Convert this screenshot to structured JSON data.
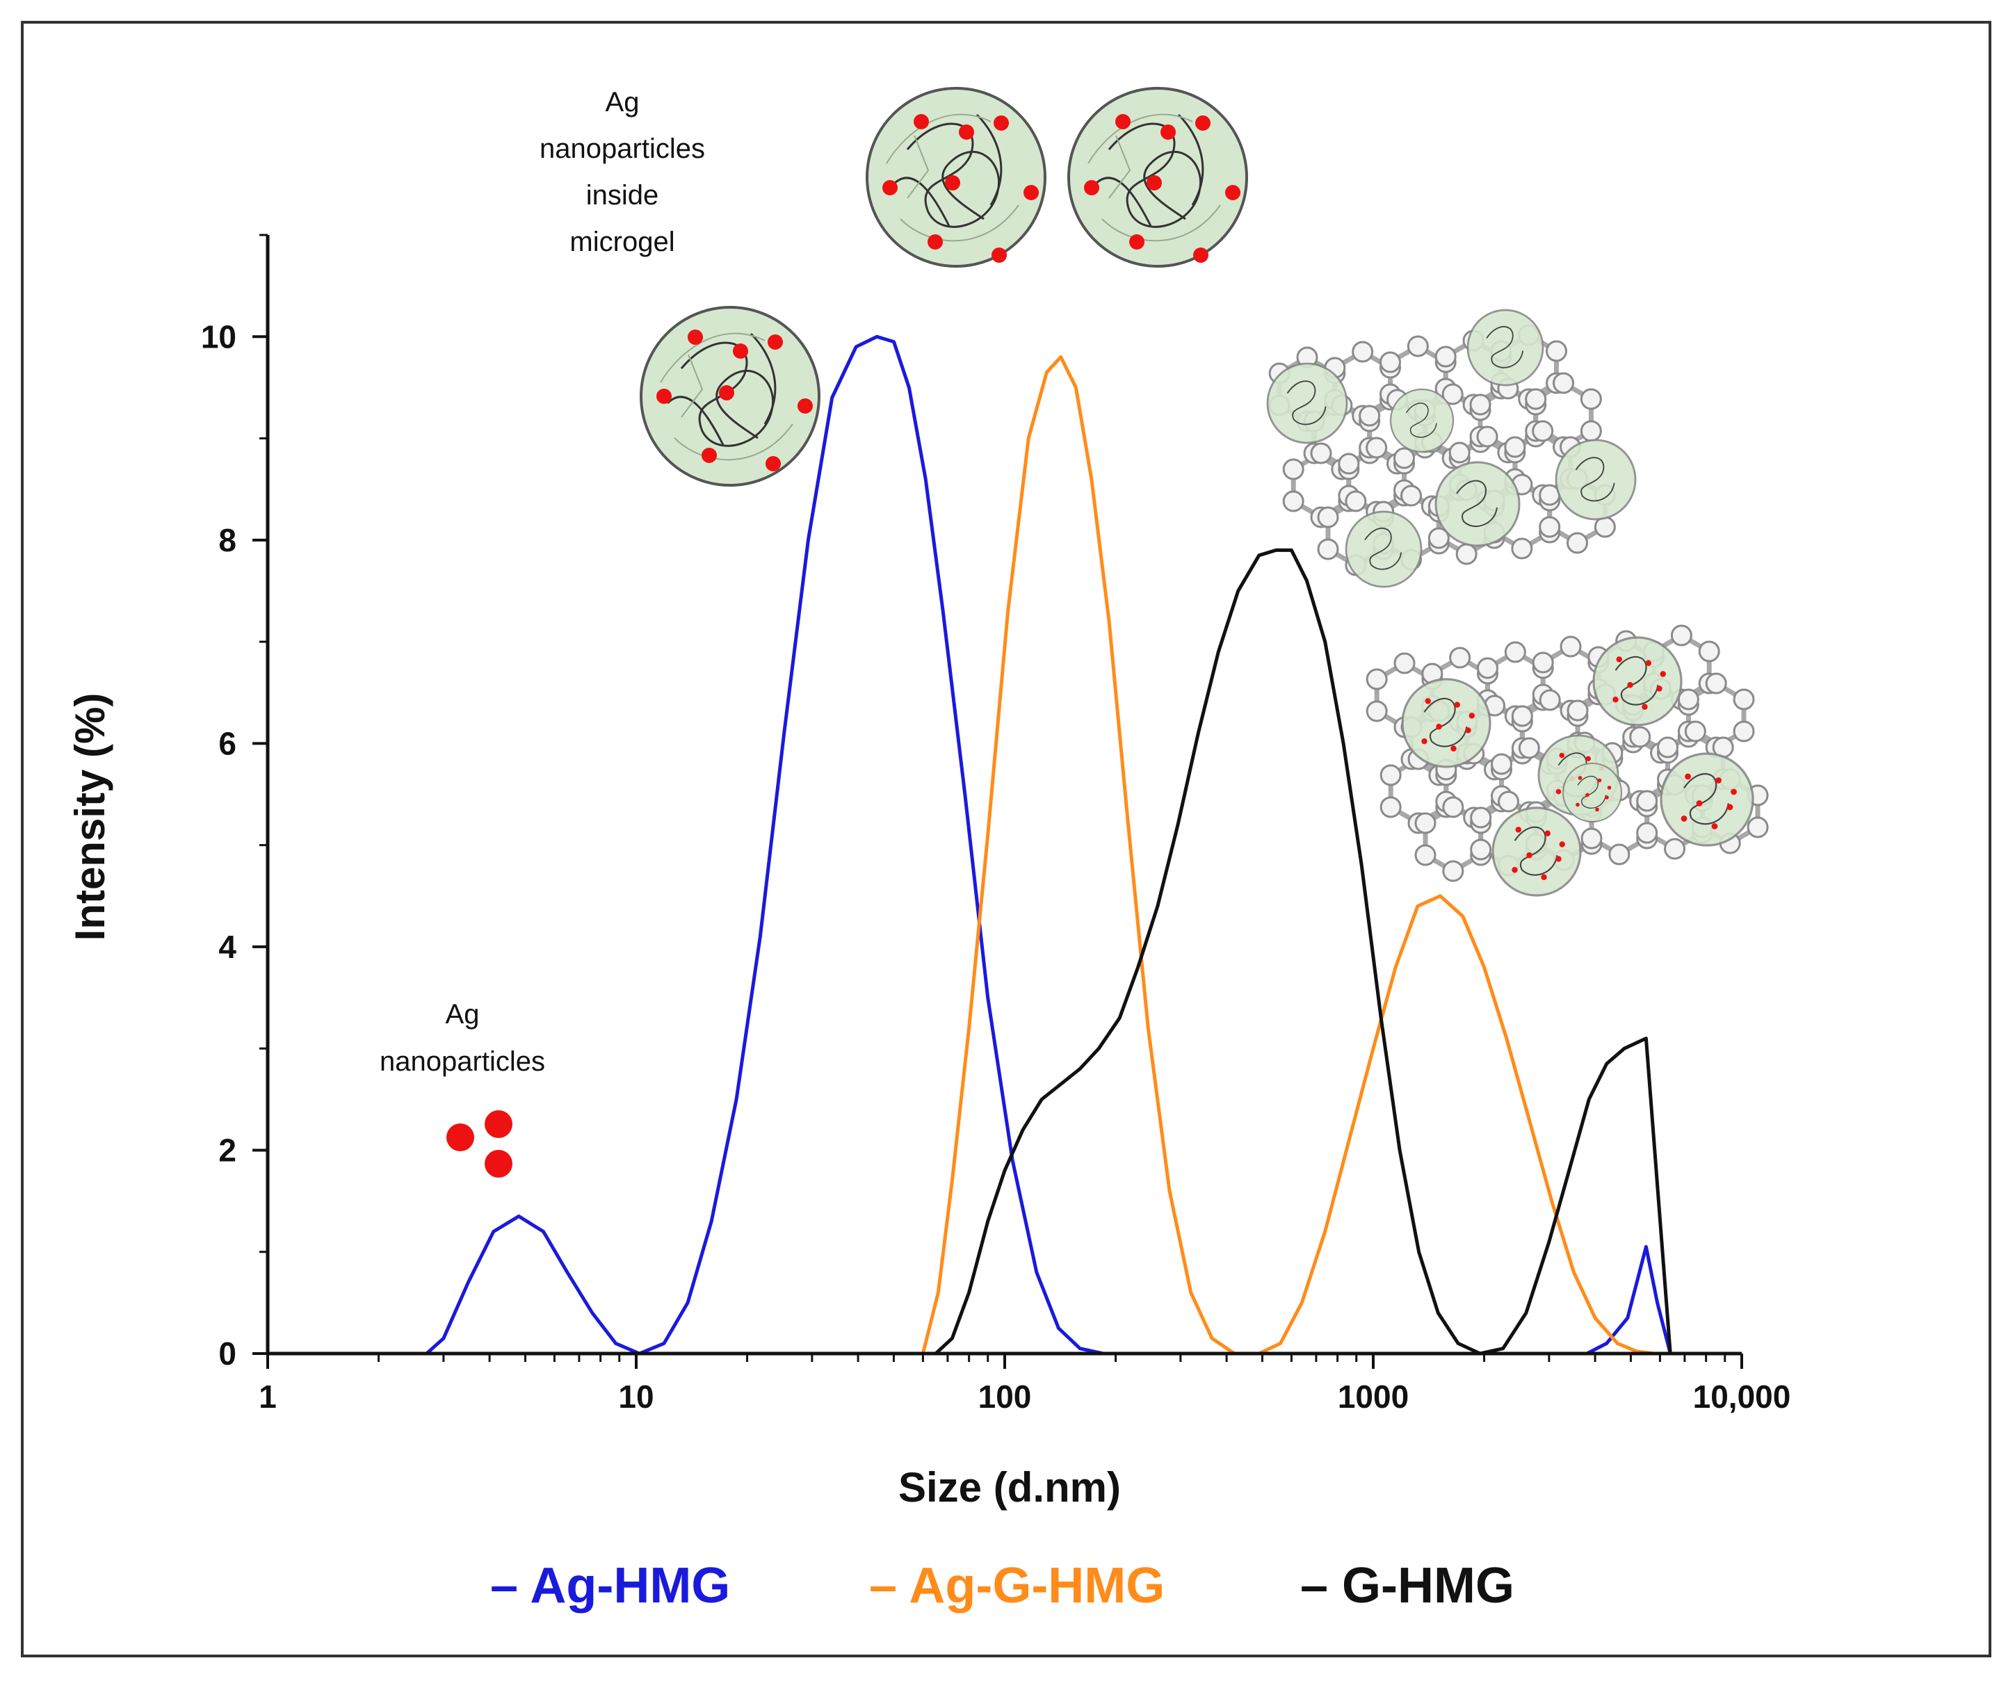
{
  "chart_data": {
    "type": "line",
    "title": "",
    "xlabel": "Size (d.nm)",
    "ylabel": "Intensity (%)",
    "x_scale": "log",
    "xlim": [
      1,
      10000
    ],
    "ylim": [
      0,
      11
    ],
    "x_ticks": [
      {
        "value": 1,
        "label": "1"
      },
      {
        "value": 10,
        "label": "10"
      },
      {
        "value": 100,
        "label": "100"
      },
      {
        "value": 1000,
        "label": "1000"
      },
      {
        "value": 10000,
        "label": "10,000"
      }
    ],
    "y_ticks": [
      {
        "value": 0,
        "label": "0"
      },
      {
        "value": 2,
        "label": "2"
      },
      {
        "value": 4,
        "label": "4"
      },
      {
        "value": 6,
        "label": "6"
      },
      {
        "value": 8,
        "label": "8"
      },
      {
        "value": 10,
        "label": "10"
      }
    ],
    "series": [
      {
        "name": "Ag-HMG",
        "legend_label": "– Ag-HMG",
        "color": "#1a1adc",
        "x": [
          2.7,
          3.0,
          3.5,
          4.1,
          4.8,
          5.6,
          6.5,
          7.6,
          8.8,
          10.2,
          11.9,
          13.8,
          16.0,
          18.7,
          21.7,
          25.2,
          29.3,
          34.0,
          39.5,
          45.0,
          50.0,
          55.0,
          61.0,
          68.0,
          78.0,
          90.0,
          105.0,
          122.0,
          140.0,
          160.0,
          185.0,
          300.0,
          1000.0,
          3000.0,
          3800.0,
          4300.0,
          4900.0,
          5500.0,
          5900.0,
          6400.0
        ],
        "values": [
          0,
          0.15,
          0.7,
          1.2,
          1.35,
          1.2,
          0.8,
          0.4,
          0.1,
          0,
          0.1,
          0.5,
          1.3,
          2.5,
          4.1,
          6.1,
          8.0,
          9.4,
          9.9,
          10.0,
          9.95,
          9.5,
          8.6,
          7.3,
          5.5,
          3.5,
          1.9,
          0.8,
          0.25,
          0.05,
          0,
          0,
          0,
          0,
          0,
          0.1,
          0.35,
          1.05,
          0.5,
          0
        ]
      },
      {
        "name": "Ag-G-HMG",
        "legend_label": "– Ag-G-HMG",
        "color": "#ff8c1a",
        "x": [
          60,
          66,
          72,
          80,
          90,
          102,
          116,
          130,
          142,
          156,
          172,
          192,
          215,
          245,
          280,
          320,
          365,
          420,
          490,
          560,
          640,
          740,
          860,
          1000,
          1150,
          1320,
          1520,
          1750,
          2000,
          2300,
          2650,
          3050,
          3500,
          4000,
          4600,
          5200,
          5800
        ],
        "values": [
          0,
          0.6,
          1.7,
          3.2,
          5.1,
          7.3,
          9.0,
          9.65,
          9.8,
          9.5,
          8.6,
          7.2,
          5.3,
          3.2,
          1.6,
          0.6,
          0.15,
          0,
          0,
          0.1,
          0.5,
          1.2,
          2.1,
          3.0,
          3.8,
          4.4,
          4.5,
          4.3,
          3.8,
          3.1,
          2.3,
          1.5,
          0.8,
          0.35,
          0.1,
          0.02,
          0
        ]
      },
      {
        "name": "G-HMG",
        "legend_label": "– G-HMG",
        "color": "#111111",
        "x": [
          65,
          72,
          80,
          90,
          100,
          112,
          126,
          142,
          160,
          180,
          205,
          230,
          260,
          295,
          335,
          380,
          430,
          490,
          545,
          600,
          660,
          740,
          830,
          930,
          1050,
          1180,
          1330,
          1500,
          1700,
          1950,
          2250,
          2600,
          3000,
          3400,
          3850,
          4300,
          4800,
          5500,
          6400
        ],
        "values": [
          0,
          0.15,
          0.6,
          1.3,
          1.8,
          2.2,
          2.5,
          2.65,
          2.8,
          3.0,
          3.3,
          3.8,
          4.4,
          5.2,
          6.1,
          6.9,
          7.5,
          7.85,
          7.9,
          7.9,
          7.6,
          7.0,
          6.0,
          4.8,
          3.3,
          2.0,
          1.0,
          0.4,
          0.1,
          0,
          0.05,
          0.4,
          1.1,
          1.8,
          2.5,
          2.85,
          3.0,
          3.1,
          0
        ]
      }
    ],
    "annotations": {
      "free_particles": [
        "Ag",
        "nanoparticles"
      ],
      "inside_microgel": [
        "Ag",
        "nanoparticles",
        "inside",
        "microgel"
      ]
    }
  }
}
